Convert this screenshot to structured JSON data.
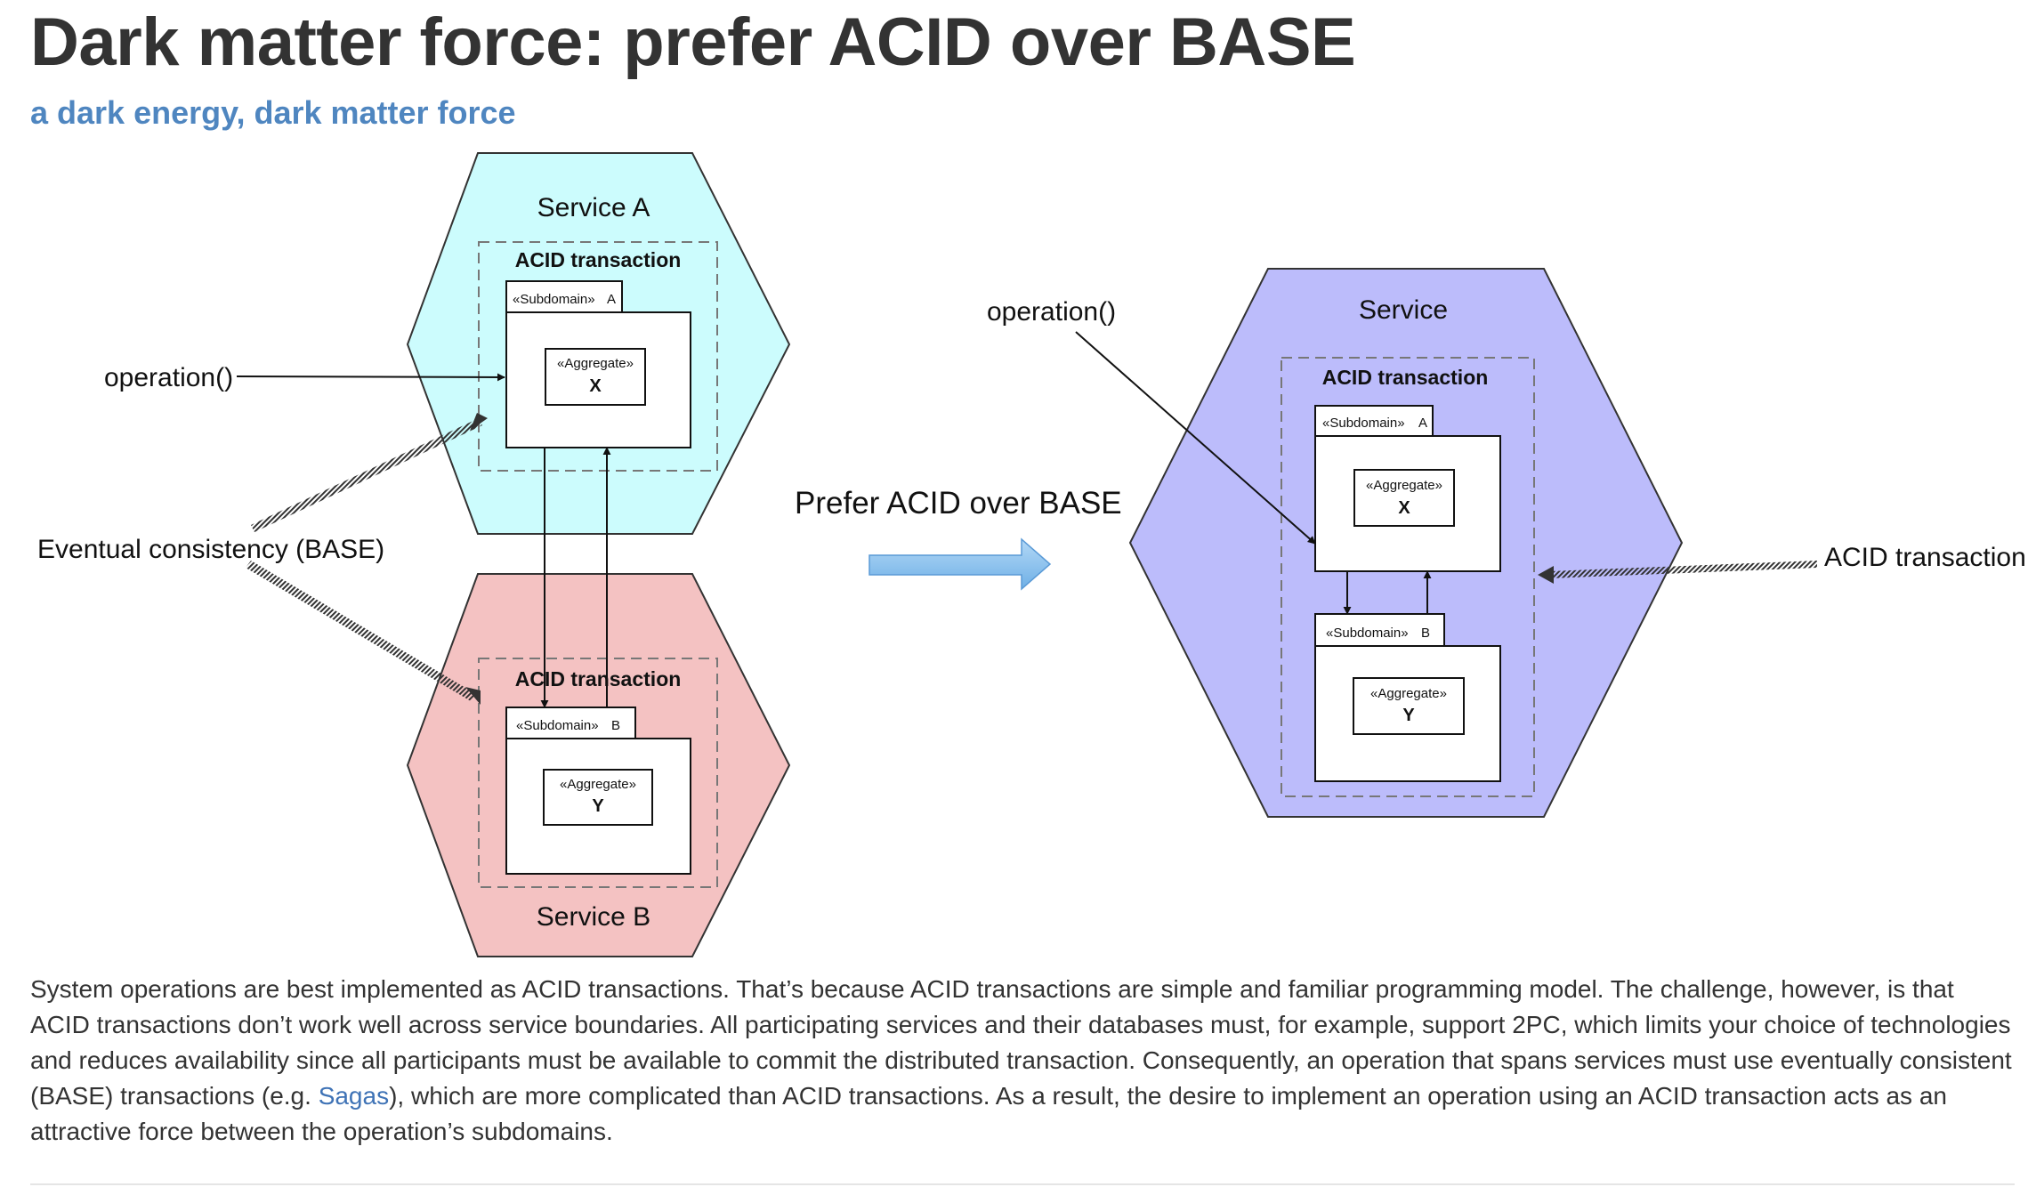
{
  "header": {
    "title": "Dark matter force: prefer ACID over BASE",
    "subtitle": "a dark energy, dark matter force"
  },
  "diagram": {
    "left": {
      "service_a": {
        "name": "Service A",
        "transaction": "ACID transaction",
        "subdomain_stereotype": "«Subdomain»",
        "subdomain_name": "A",
        "aggregate_stereotype": "«Aggregate»",
        "aggregate_name": "X"
      },
      "service_b": {
        "name": "Service B",
        "transaction": "ACID transaction",
        "subdomain_stereotype": "«Subdomain»",
        "subdomain_name": "B",
        "aggregate_stereotype": "«Aggregate»",
        "aggregate_name": "Y"
      },
      "operation_label": "operation()",
      "consistency_label": "Eventual consistency (BASE)"
    },
    "middle": {
      "label": "Prefer ACID over BASE"
    },
    "right": {
      "service_name": "Service",
      "transaction": "ACID transaction",
      "operation_label": "operation()",
      "acid_label": "ACID transaction",
      "subdomain_a": {
        "stereotype": "«Subdomain»",
        "name": "A",
        "aggregate_stereotype": "«Aggregate»",
        "aggregate_name": "X"
      },
      "subdomain_b": {
        "stereotype": "«Subdomain»",
        "name": "B",
        "aggregate_stereotype": "«Aggregate»",
        "aggregate_name": "Y"
      }
    },
    "colors": {
      "service_a_fill": "#ccfcfd",
      "service_b_fill": "#f4c2c2",
      "service_fill": "#bcbcfb",
      "arrow_fill": "#8fc4ee",
      "subtitle": "#4f86c0"
    }
  },
  "body": {
    "text_before_link": "System operations are best implemented as ACID transactions. That’s because ACID transactions are simple and familiar programming model. The challenge, however, is that ACID transactions don’t work well across service boundaries. All participating services and their databases must, for example, support 2PC, which limits your choice of technologies and reduces availability since all participants must be available to commit the distributed transaction. Consequently, an operation that spans services must use eventually consistent (BASE) transactions (e.g. ",
    "link_text": "Sagas",
    "text_after_link": "), which are more complicated than ACID transactions. As a result, the desire to implement an operation using an ACID transaction acts as an attractive force between the operation’s subdomains."
  }
}
